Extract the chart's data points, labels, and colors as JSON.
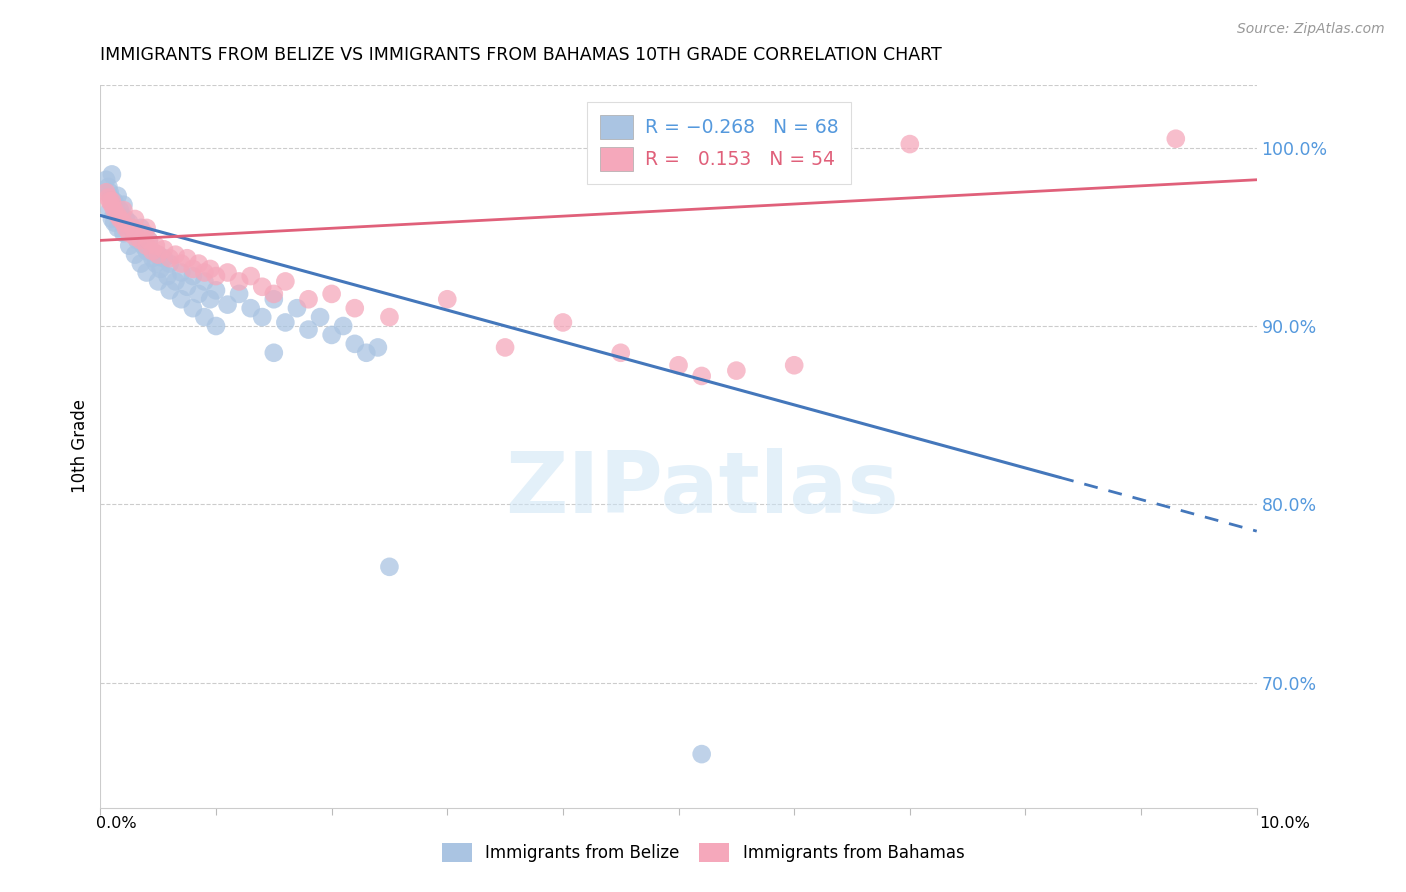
{
  "title": "IMMIGRANTS FROM BELIZE VS IMMIGRANTS FROM BAHAMAS 10TH GRADE CORRELATION CHART",
  "source": "Source: ZipAtlas.com",
  "ylabel": "10th Grade",
  "legend_belize": {
    "R": -0.268,
    "N": 68,
    "label": "Immigrants from Belize"
  },
  "legend_bahamas": {
    "R": 0.153,
    "N": 54,
    "label": "Immigrants from Bahamas"
  },
  "color_belize": "#aac4e2",
  "color_bahamas": "#f5a8bb",
  "color_belize_line": "#4477bb",
  "color_bahamas_line": "#e0607a",
  "color_axis_right": "#5599dd",
  "watermark": "ZIPatlas",
  "xmin": 0.0,
  "xmax": 10.0,
  "ymin": 63.0,
  "ymax": 103.5,
  "belize_trend_x0": 0.0,
  "belize_trend_y0": 96.2,
  "belize_trend_x1": 10.0,
  "belize_trend_y1": 78.5,
  "belize_solid_end": 8.3,
  "bahamas_trend_x0": 0.0,
  "bahamas_trend_y0": 94.8,
  "bahamas_trend_x1": 10.0,
  "bahamas_trend_y1": 98.2,
  "belize_points": [
    [
      0.05,
      98.2
    ],
    [
      0.07,
      97.8
    ],
    [
      0.08,
      97.5
    ],
    [
      0.09,
      97.2
    ],
    [
      0.1,
      98.5
    ],
    [
      0.12,
      97.0
    ],
    [
      0.13,
      96.8
    ],
    [
      0.15,
      97.3
    ],
    [
      0.17,
      96.5
    ],
    [
      0.18,
      96.2
    ],
    [
      0.2,
      96.8
    ],
    [
      0.22,
      96.0
    ],
    [
      0.25,
      95.8
    ],
    [
      0.27,
      95.5
    ],
    [
      0.3,
      95.2
    ],
    [
      0.32,
      94.8
    ],
    [
      0.35,
      95.5
    ],
    [
      0.37,
      94.5
    ],
    [
      0.4,
      94.2
    ],
    [
      0.42,
      94.8
    ],
    [
      0.45,
      93.8
    ],
    [
      0.48,
      93.5
    ],
    [
      0.5,
      94.0
    ],
    [
      0.52,
      93.2
    ],
    [
      0.55,
      93.8
    ],
    [
      0.58,
      92.8
    ],
    [
      0.6,
      93.5
    ],
    [
      0.65,
      92.5
    ],
    [
      0.7,
      93.0
    ],
    [
      0.75,
      92.2
    ],
    [
      0.8,
      92.8
    ],
    [
      0.85,
      91.8
    ],
    [
      0.9,
      92.5
    ],
    [
      0.95,
      91.5
    ],
    [
      1.0,
      92.0
    ],
    [
      1.1,
      91.2
    ],
    [
      1.2,
      91.8
    ],
    [
      1.3,
      91.0
    ],
    [
      1.4,
      90.5
    ],
    [
      1.5,
      91.5
    ],
    [
      1.6,
      90.2
    ],
    [
      1.7,
      91.0
    ],
    [
      1.8,
      89.8
    ],
    [
      1.9,
      90.5
    ],
    [
      2.0,
      89.5
    ],
    [
      2.1,
      90.0
    ],
    [
      2.2,
      89.0
    ],
    [
      2.3,
      88.5
    ],
    [
      2.4,
      88.8
    ],
    [
      0.08,
      96.5
    ],
    [
      0.1,
      96.0
    ],
    [
      0.12,
      95.8
    ],
    [
      0.15,
      95.5
    ],
    [
      0.2,
      95.2
    ],
    [
      0.25,
      94.5
    ],
    [
      0.3,
      94.0
    ],
    [
      0.35,
      93.5
    ],
    [
      0.4,
      93.0
    ],
    [
      0.5,
      92.5
    ],
    [
      0.6,
      92.0
    ],
    [
      0.7,
      91.5
    ],
    [
      0.8,
      91.0
    ],
    [
      0.9,
      90.5
    ],
    [
      1.0,
      90.0
    ],
    [
      1.5,
      88.5
    ],
    [
      2.5,
      76.5
    ],
    [
      5.2,
      66.0
    ]
  ],
  "bahamas_points": [
    [
      0.05,
      97.5
    ],
    [
      0.07,
      97.2
    ],
    [
      0.08,
      97.0
    ],
    [
      0.1,
      96.8
    ],
    [
      0.12,
      96.5
    ],
    [
      0.15,
      96.2
    ],
    [
      0.17,
      96.0
    ],
    [
      0.2,
      95.8
    ],
    [
      0.22,
      95.5
    ],
    [
      0.25,
      95.2
    ],
    [
      0.28,
      95.5
    ],
    [
      0.3,
      95.0
    ],
    [
      0.35,
      94.8
    ],
    [
      0.38,
      95.2
    ],
    [
      0.4,
      94.5
    ],
    [
      0.42,
      94.8
    ],
    [
      0.45,
      94.2
    ],
    [
      0.48,
      94.5
    ],
    [
      0.5,
      94.0
    ],
    [
      0.55,
      94.3
    ],
    [
      0.6,
      93.8
    ],
    [
      0.65,
      94.0
    ],
    [
      0.7,
      93.5
    ],
    [
      0.75,
      93.8
    ],
    [
      0.8,
      93.2
    ],
    [
      0.85,
      93.5
    ],
    [
      0.9,
      93.0
    ],
    [
      0.95,
      93.2
    ],
    [
      1.0,
      92.8
    ],
    [
      1.1,
      93.0
    ],
    [
      1.2,
      92.5
    ],
    [
      1.3,
      92.8
    ],
    [
      1.4,
      92.2
    ],
    [
      1.5,
      91.8
    ],
    [
      1.6,
      92.5
    ],
    [
      1.8,
      91.5
    ],
    [
      2.0,
      91.8
    ],
    [
      2.2,
      91.0
    ],
    [
      2.5,
      90.5
    ],
    [
      3.0,
      91.5
    ],
    [
      3.5,
      88.8
    ],
    [
      4.0,
      90.2
    ],
    [
      4.5,
      88.5
    ],
    [
      5.0,
      87.8
    ],
    [
      5.2,
      87.2
    ],
    [
      5.5,
      87.5
    ],
    [
      6.0,
      87.8
    ],
    [
      0.1,
      97.0
    ],
    [
      0.2,
      96.5
    ],
    [
      0.3,
      96.0
    ],
    [
      0.4,
      95.5
    ],
    [
      7.0,
      100.2
    ],
    [
      9.3,
      100.5
    ]
  ]
}
